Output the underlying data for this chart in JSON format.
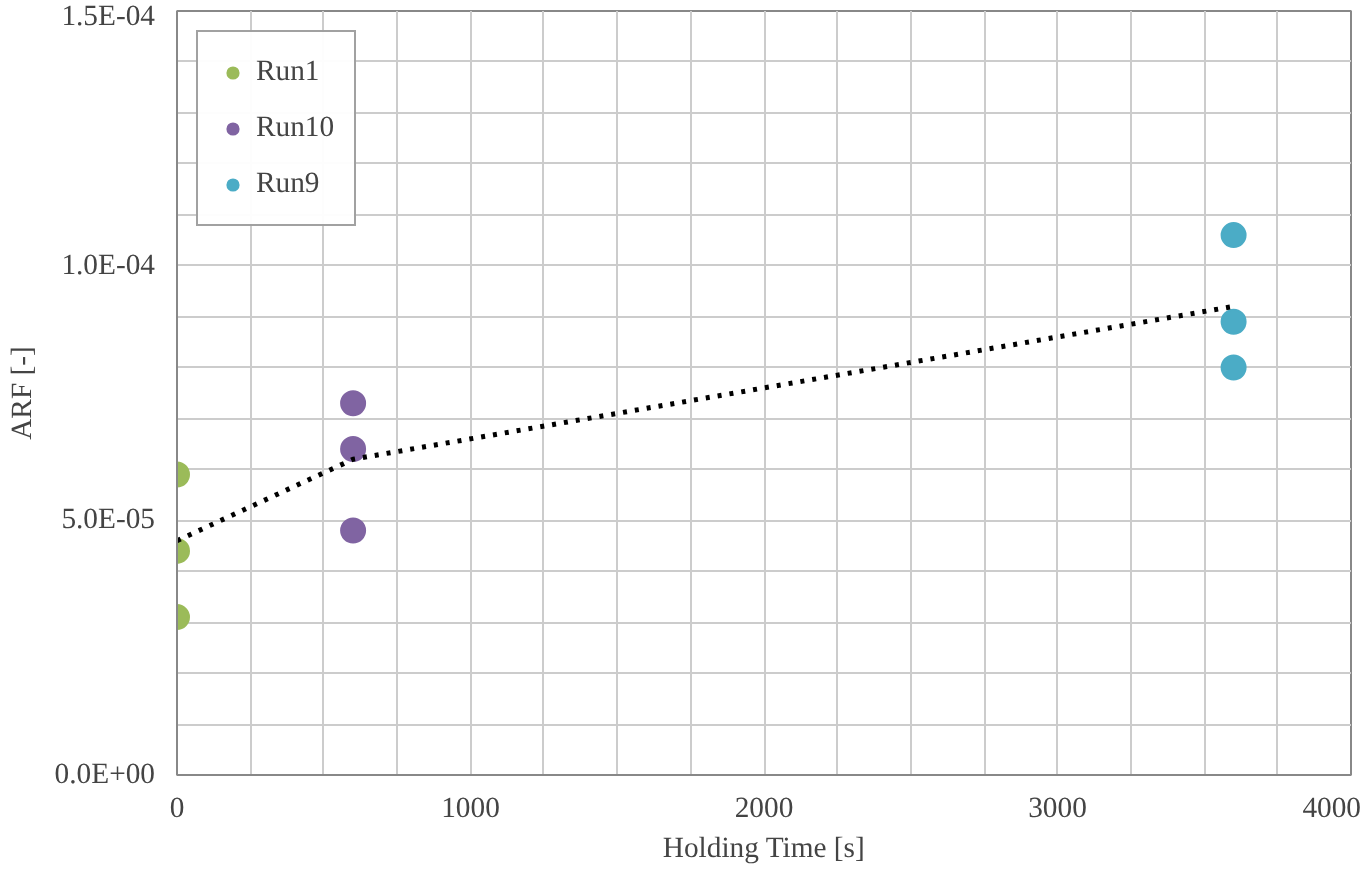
{
  "chart_data": {
    "type": "scatter",
    "xlabel": "Holding Time [s]",
    "ylabel": "ARF [-]",
    "xlim": [
      0,
      4000
    ],
    "ylim": [
      0,
      0.00015
    ],
    "xticks": [
      0,
      {
        "value": 250,
        "label": null
      },
      {
        "value": 500,
        "label": null
      },
      {
        "value": 750,
        "label": null
      },
      1000,
      {
        "value": 1250,
        "label": null
      },
      {
        "value": 1500,
        "label": null
      },
      {
        "value": 1750,
        "label": null
      },
      2000,
      {
        "value": 2250,
        "label": null
      },
      {
        "value": 2500,
        "label": null
      },
      {
        "value": 2750,
        "label": null
      },
      3000,
      {
        "value": 3250,
        "label": null
      },
      {
        "value": 3500,
        "label": null
      },
      {
        "value": 3750,
        "label": null
      },
      4000
    ],
    "yticks": [
      {
        "value": 0,
        "label": "0.0E+00"
      },
      {
        "value": 1e-05,
        "label": null
      },
      {
        "value": 2e-05,
        "label": null
      },
      {
        "value": 3e-05,
        "label": null
      },
      {
        "value": 4e-05,
        "label": null
      },
      {
        "value": 5e-05,
        "label": "5.0E-05"
      },
      {
        "value": 6e-05,
        "label": null
      },
      {
        "value": 7e-05,
        "label": null
      },
      {
        "value": 8e-05,
        "label": null
      },
      {
        "value": 9e-05,
        "label": null
      },
      {
        "value": 0.0001,
        "label": "1.0E-04"
      },
      {
        "value": 0.00011,
        "label": null
      },
      {
        "value": 0.00012,
        "label": null
      },
      {
        "value": 0.00013,
        "label": null
      },
      {
        "value": 0.00014,
        "label": null
      },
      {
        "value": 0.00015,
        "label": "1.5E-04"
      }
    ],
    "grid": true,
    "legend": "top left",
    "series": [
      {
        "name": "Run1",
        "color": "#9bbb59",
        "x": [
          0,
          0,
          0
        ],
        "values": [
          5.9e-05,
          4.4e-05,
          3.1e-05
        ],
        "marker": "circle"
      },
      {
        "name": "Run10",
        "color": "#8064a2",
        "x": [
          600,
          600,
          600
        ],
        "values": [
          7.3e-05,
          6.4e-05,
          4.8e-05
        ],
        "marker": "circle"
      },
      {
        "name": "Run9",
        "color": "#4bacc6",
        "x": [
          3600,
          3600,
          3600
        ],
        "values": [
          0.000106,
          8.9e-05,
          8e-05
        ],
        "marker": "circle"
      },
      {
        "type": "line",
        "color": "#000000",
        "line_style": "dotted",
        "x": [
          0,
          600,
          3600
        ],
        "values": [
          4.6e-05,
          6.2e-05,
          9.2e-05
        ],
        "marker": "none"
      }
    ]
  }
}
